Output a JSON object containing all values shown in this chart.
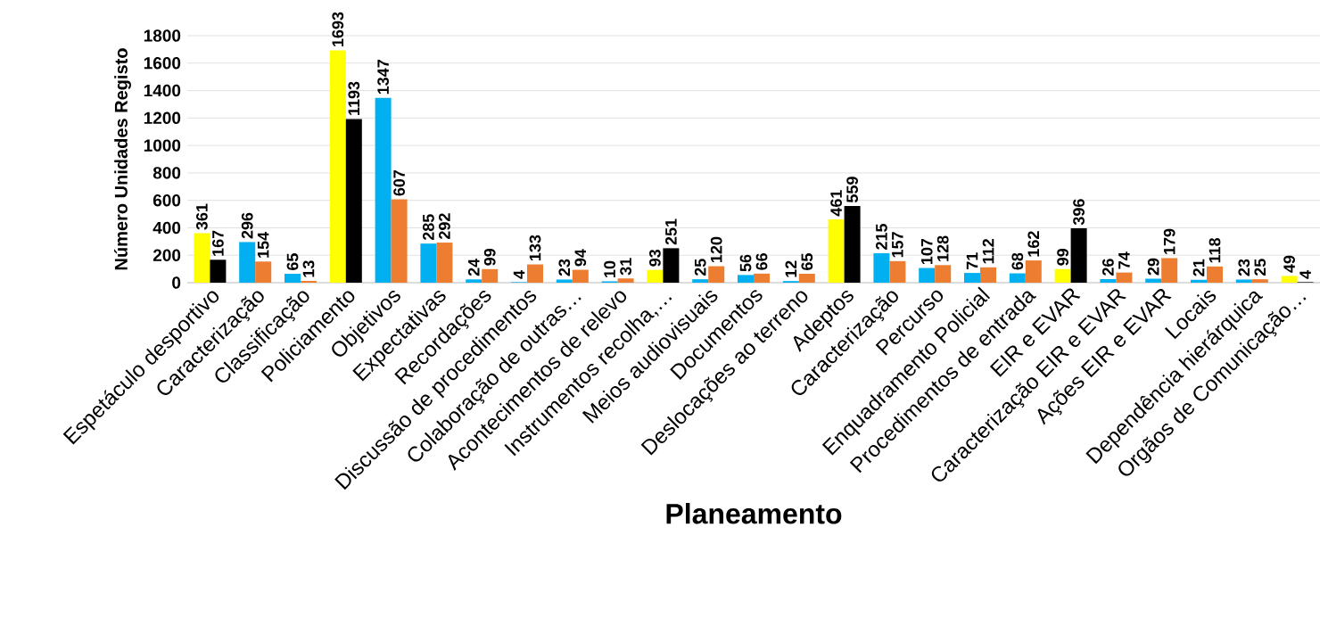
{
  "chart_data": {
    "type": "bar",
    "xlabel": "Planeamento",
    "ylabel": "Número Unidades Registo",
    "categories": [
      "Espetáculo desportivo",
      "Caracterização",
      "Classificação",
      "Policiamento",
      "Objetivos",
      "Expectativas",
      "Recordações",
      "Discussão de procedimentos",
      "Colaboração de outras…",
      "Acontecimentos de relevo",
      "Instrumentos recolha,…",
      "Meios audiovisuais",
      "Documentos",
      "Deslocações ao terreno",
      "Adeptos",
      "Caracterização",
      "Percurso",
      "Enquadramento Policial",
      "Procedimentos de entrada",
      "EIR e EVAR",
      "Caracterização EIR e EVAR",
      "Ações EIR e EVAR",
      "Locais",
      "Dependência hierárquica",
      "Orgãos de Comunicação…"
    ],
    "series": [
      {
        "values": [
          361,
          296,
          65,
          1693,
          1347,
          285,
          24,
          4,
          23,
          10,
          93,
          25,
          56,
          12,
          461,
          215,
          107,
          71,
          68,
          99,
          26,
          29,
          21,
          23,
          49
        ],
        "colors": [
          "#ffff00",
          "#00b0f0",
          "#00b0f0",
          "#ffff00",
          "#00b0f0",
          "#00b0f0",
          "#00b0f0",
          "#00b0f0",
          "#00b0f0",
          "#00b0f0",
          "#ffff00",
          "#00b0f0",
          "#00b0f0",
          "#00b0f0",
          "#ffff00",
          "#00b0f0",
          "#00b0f0",
          "#00b0f0",
          "#00b0f0",
          "#ffff00",
          "#00b0f0",
          "#00b0f0",
          "#00b0f0",
          "#00b0f0",
          "#ffff00"
        ]
      },
      {
        "values": [
          167,
          154,
          13,
          1193,
          607,
          292,
          99,
          133,
          94,
          31,
          251,
          120,
          66,
          65,
          559,
          157,
          128,
          112,
          162,
          396,
          74,
          179,
          118,
          25,
          4
        ],
        "colors": [
          "#000000",
          "#ed7d31",
          "#ed7d31",
          "#000000",
          "#ed7d31",
          "#ed7d31",
          "#ed7d31",
          "#ed7d31",
          "#ed7d31",
          "#ed7d31",
          "#000000",
          "#ed7d31",
          "#ed7d31",
          "#ed7d31",
          "#000000",
          "#ed7d31",
          "#ed7d31",
          "#ed7d31",
          "#ed7d31",
          "#000000",
          "#ed7d31",
          "#ed7d31",
          "#ed7d31",
          "#ed7d31",
          "#000000"
        ]
      }
    ],
    "ylim": [
      0,
      1800
    ],
    "yticks": [
      0,
      200,
      400,
      600,
      800,
      1000,
      1200,
      1400,
      1600,
      1800
    ],
    "grid": "y",
    "data_labels": true
  }
}
